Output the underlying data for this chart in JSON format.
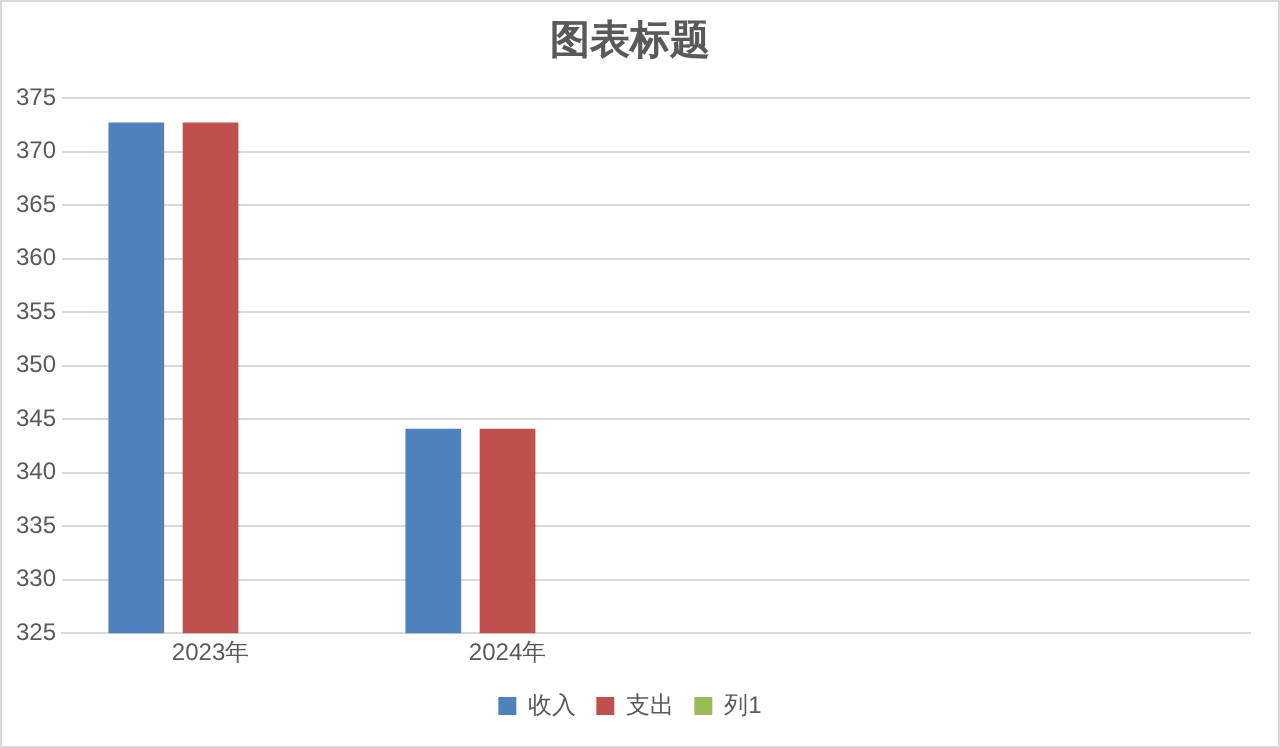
{
  "chart_data": {
    "type": "bar",
    "title": "图表标题",
    "categories": [
      "2023年",
      "2024年",
      null,
      null
    ],
    "series": [
      {
        "name": "收入",
        "color": "#4f81bd",
        "values": [
          372.7,
          344.1,
          null,
          null
        ]
      },
      {
        "name": "支出",
        "color": "#c0504d",
        "values": [
          372.7,
          344.1,
          null,
          null
        ]
      },
      {
        "name": "列1",
        "color": "#9bbb59",
        "values": [
          null,
          null,
          null,
          null
        ]
      }
    ],
    "ylim": [
      325,
      375
    ],
    "yticks": [
      325,
      330,
      335,
      340,
      345,
      350,
      355,
      360,
      365,
      370,
      375
    ],
    "grid": "y",
    "legend": "bottom"
  }
}
